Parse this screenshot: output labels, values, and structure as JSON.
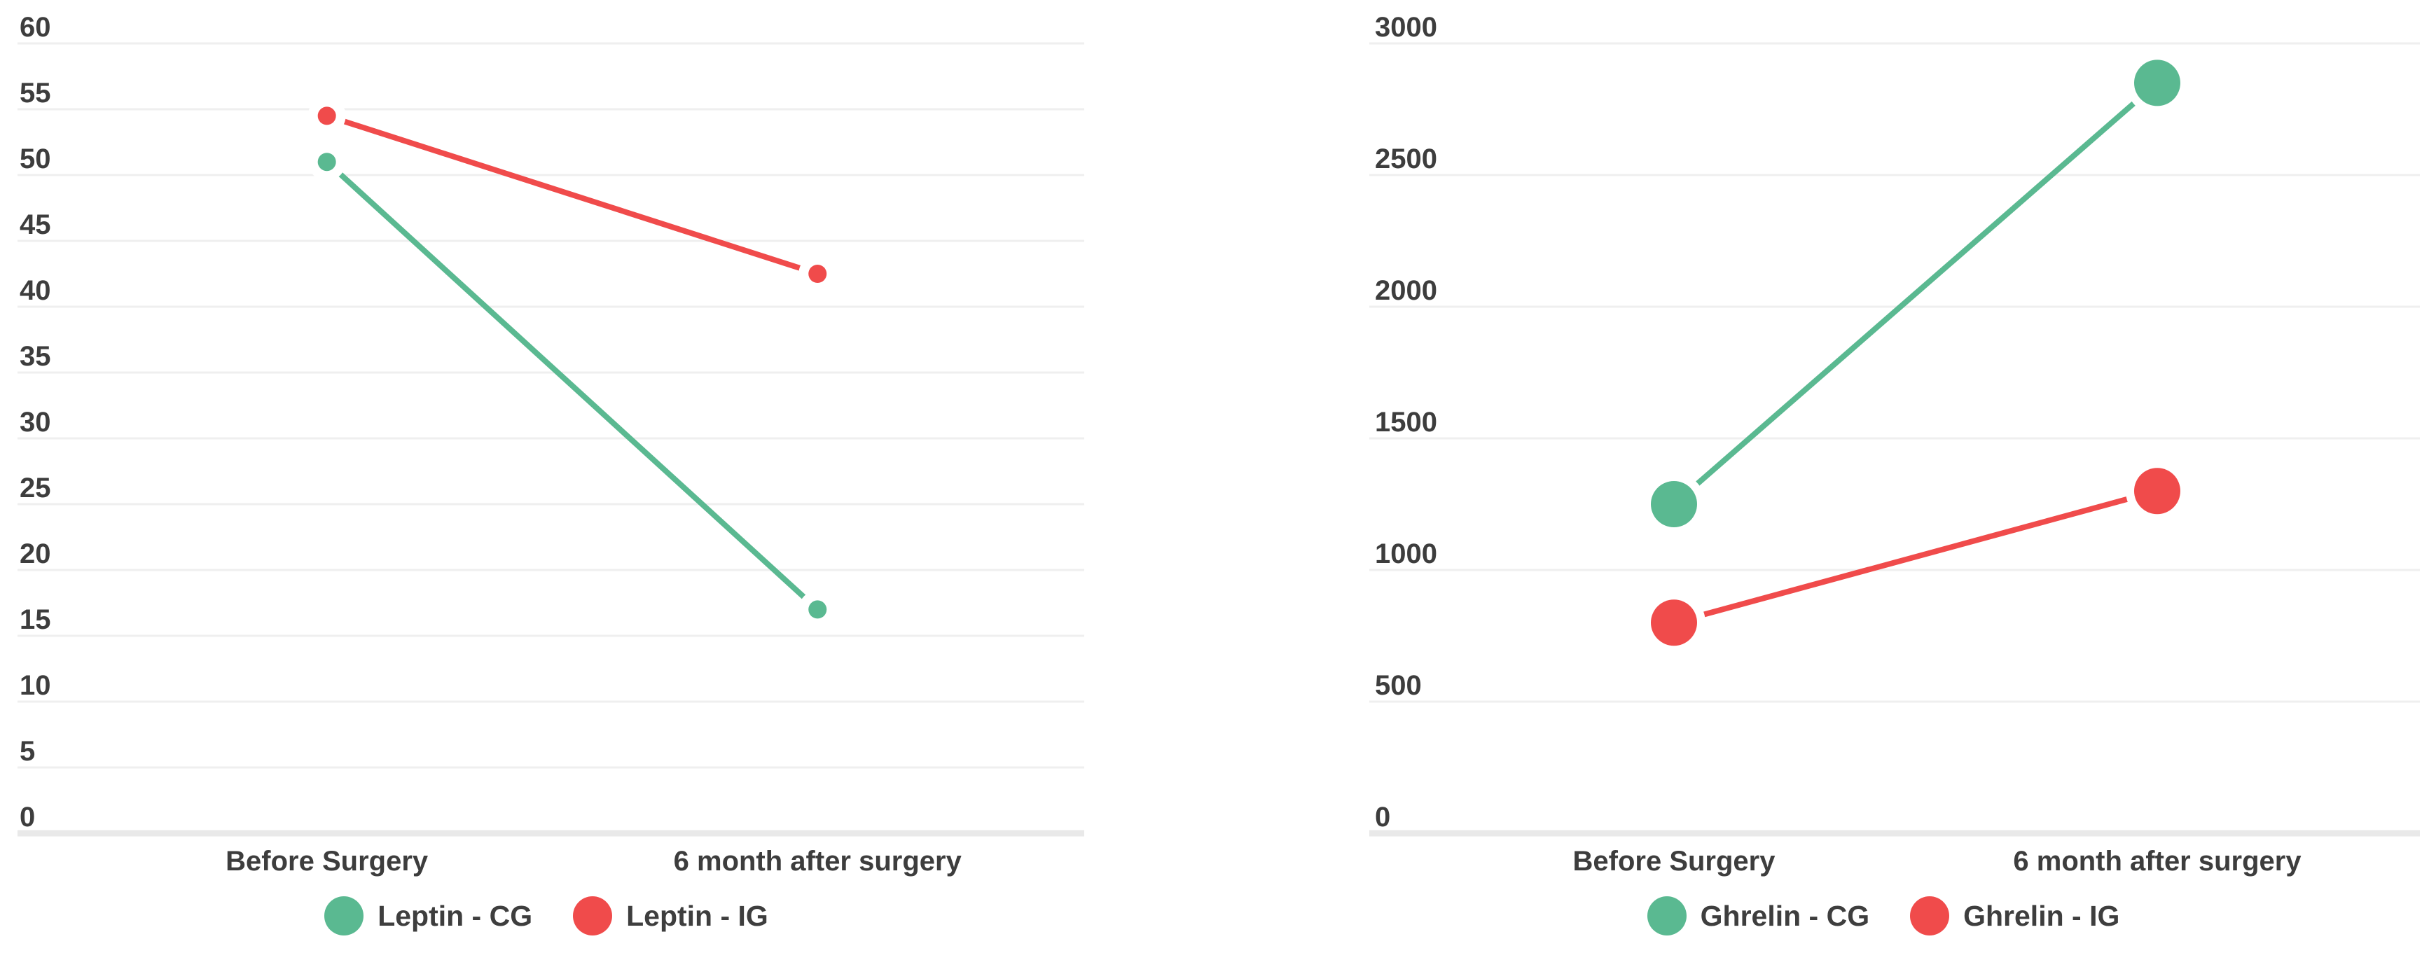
{
  "figure": {
    "background": "#FFFFFF",
    "palette": {
      "grid_line": "#EFEFEF",
      "axis_line": "#E9E9E9",
      "tick_text": "#3D3D3D",
      "legend_text": "#3E3E3E"
    }
  },
  "chart_data": [
    {
      "type": "line",
      "title": "",
      "categories": [
        "Before Surgery",
        "6 month after surgery"
      ],
      "series": [
        {
          "name": "Leptin - CG",
          "color": "#5AB991",
          "values": [
            51,
            17
          ]
        },
        {
          "name": "Leptin - IG",
          "color": "#F04B4B",
          "values": [
            54.5,
            42.5
          ]
        }
      ],
      "ylim": [
        0,
        60
      ],
      "yticks": [
        0,
        5,
        10,
        15,
        20,
        25,
        30,
        35,
        40,
        45,
        50,
        55,
        60
      ],
      "xlabel": "",
      "ylabel": "",
      "grid": true,
      "legend_position": "bottom",
      "point_radius_px": 13
    },
    {
      "type": "line",
      "title": "",
      "categories": [
        "Before Surgery",
        "6 month after surgery"
      ],
      "series": [
        {
          "name": "Ghrelin - CG",
          "color": "#5AB991",
          "values": [
            1250,
            2850
          ]
        },
        {
          "name": "Ghrelin - IG",
          "color": "#F04B4B",
          "values": [
            800,
            1300
          ]
        }
      ],
      "ylim": [
        0,
        3000
      ],
      "yticks": [
        0,
        500,
        1000,
        1500,
        2000,
        2500,
        3000
      ],
      "xlabel": "",
      "ylabel": "",
      "grid": true,
      "legend_position": "bottom",
      "point_radius_px": 33
    }
  ]
}
